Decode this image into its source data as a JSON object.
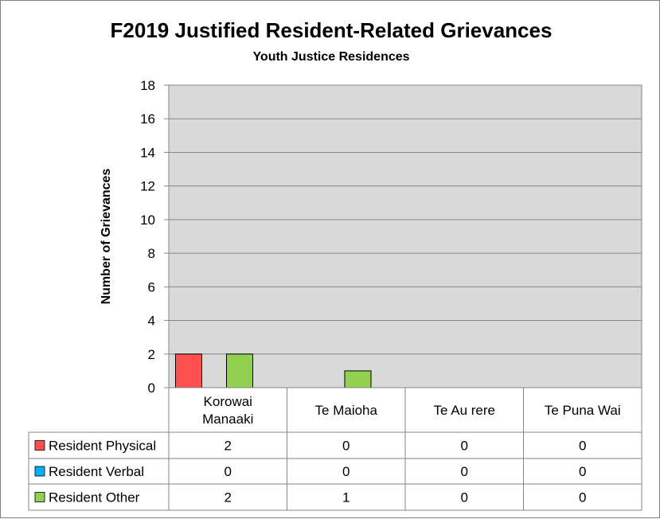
{
  "chart_data": {
    "type": "bar",
    "title": "F2019 Justified Resident-Related Grievances",
    "subtitle": "Youth Justice Residences",
    "xlabel": "",
    "ylabel": "Number of Grievances",
    "ylim": [
      0,
      18
    ],
    "yticks": [
      0,
      2,
      4,
      6,
      8,
      10,
      12,
      14,
      16,
      18
    ],
    "grid": true,
    "legend": "data-table",
    "plot_background": "#d9d9d9",
    "categories": [
      [
        "Korowai",
        "Manaaki"
      ],
      [
        "Te Maioha"
      ],
      [
        "Te Au rere"
      ],
      [
        "Te Puna Wai"
      ]
    ],
    "series": [
      {
        "name": "Resident Physical",
        "color": "#ff5050",
        "values": [
          2,
          0,
          0,
          0
        ]
      },
      {
        "name": "Resident Verbal",
        "color": "#00b0f0",
        "values": [
          0,
          0,
          0,
          0
        ]
      },
      {
        "name": "Resident Other",
        "color": "#92d050",
        "values": [
          2,
          1,
          0,
          0
        ]
      }
    ]
  }
}
